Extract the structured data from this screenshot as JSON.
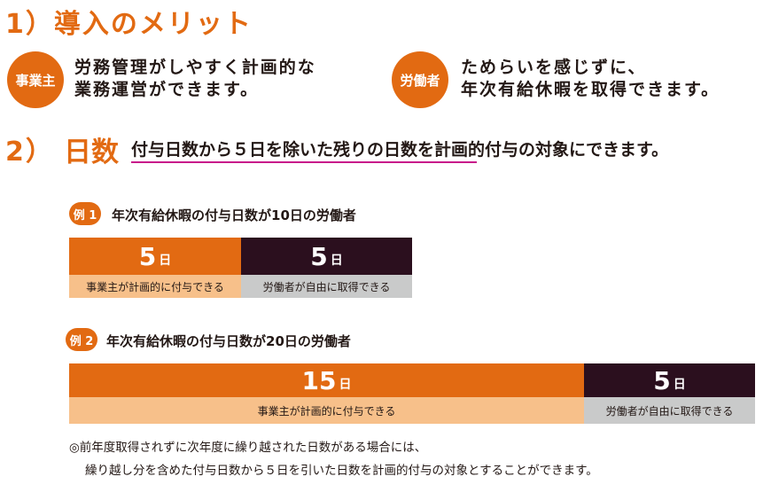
{
  "section1": {
    "title": "1）導入のメリット",
    "employer": {
      "badge": "事業主",
      "line1": "労務管理がしやすく計画的な",
      "line2": "業務運営ができます。"
    },
    "worker": {
      "badge": "労働者",
      "line1": "ためらいを感じずに、",
      "line2": "年次有給休暇を取得できます。"
    }
  },
  "section2": {
    "number": "2）",
    "label": "日数",
    "desc_underlined": "付与日数から５日を除いた残りの日数",
    "desc_rest": "を計画的付与の対象にできます。"
  },
  "example1": {
    "badge": "例 1",
    "title": "年次有給休暇の付与日数が10日の労働者",
    "employer_days": "5",
    "worker_days": "5",
    "unit": "日",
    "employer_label": "事業主が計画的に付与できる",
    "worker_label": "労働者が自由に取得できる"
  },
  "example2": {
    "badge": "例 2",
    "title": "年次有給休暇の付与日数が20日の労働者",
    "employer_days": "15",
    "worker_days": "5",
    "unit": "日",
    "employer_label": "事業主が計画的に付与できる",
    "worker_label": "労働者が自由に取得できる"
  },
  "note": {
    "line1": "◎前年度取得されずに次年度に繰り越された日数がある場合には、",
    "line2": "繰り越し分を含めた付与日数から５日を引いた日数を計画的付与の対象とすることができます。"
  },
  "colors": {
    "accent": "#e26a12",
    "dark": "#2b0f1e",
    "light_orange": "#f7c08a",
    "gray": "#c9caca",
    "underline": "#c8178a"
  }
}
